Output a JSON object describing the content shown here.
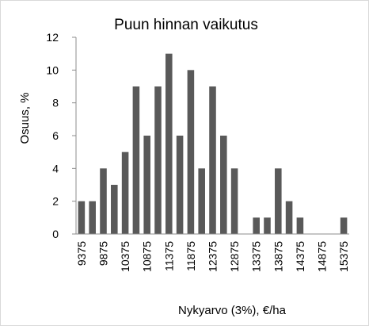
{
  "chart_data": {
    "type": "bar",
    "title": "Puun hinnan vaikutus",
    "xlabel": "Nykyarvo (3%), €/ha",
    "ylabel": "Osuus, %",
    "ylim": [
      0,
      12
    ],
    "yticks": [
      0,
      2,
      4,
      6,
      8,
      10,
      12
    ],
    "grid": false,
    "legend": "none",
    "bar_color": "#595959",
    "categories": [
      "9375",
      "9625",
      "9875",
      "10125",
      "10375",
      "10625",
      "10875",
      "11125",
      "11375",
      "11625",
      "11875",
      "12125",
      "12375",
      "12625",
      "12875",
      "13125",
      "13375",
      "13625",
      "13875",
      "14125",
      "14375",
      "14625",
      "14875",
      "15125",
      "15375"
    ],
    "tick_labels": [
      "9375",
      "",
      "9875",
      "",
      "10375",
      "",
      "10875",
      "",
      "11375",
      "",
      "11875",
      "",
      "12375",
      "",
      "12875",
      "",
      "13375",
      "",
      "13875",
      "",
      "14375",
      "",
      "14875",
      "",
      "15375"
    ],
    "values": [
      2,
      2,
      4,
      3,
      5,
      9,
      6,
      9,
      11,
      6,
      10,
      4,
      9,
      6,
      4,
      0,
      1,
      1,
      4,
      2,
      1,
      0,
      0,
      0,
      1
    ]
  }
}
